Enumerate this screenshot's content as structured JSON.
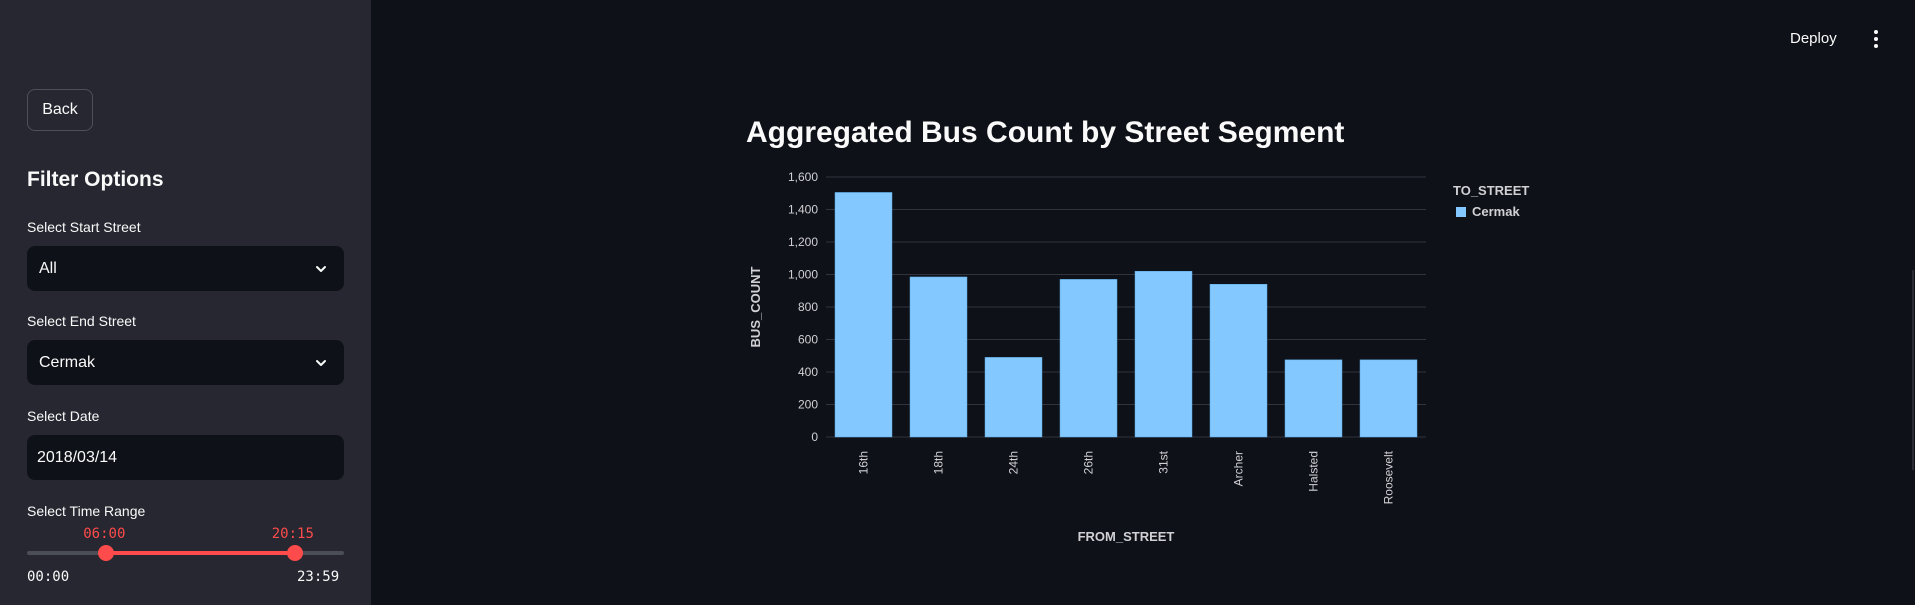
{
  "sidebar": {
    "back_label": "Back",
    "filter_title": "Filter Options",
    "start_street": {
      "label": "Select Start Street",
      "value": "All"
    },
    "end_street": {
      "label": "Select End Street",
      "value": "Cermak"
    },
    "date": {
      "label": "Select Date",
      "value": "2018/03/14"
    },
    "time_range": {
      "label": "Select Time Range",
      "low_value": "06:00",
      "high_value": "20:15",
      "min": "00:00",
      "max": "23:59",
      "low_fraction": 0.25,
      "high_fraction": 0.8446
    }
  },
  "header": {
    "deploy_label": "Deploy",
    "menu_icon": "vertical-ellipsis-icon"
  },
  "chart_title": "Aggregated Bus Count by Street Segment",
  "colors": {
    "accent": "#ff4b4b",
    "bar": "#83c9ff",
    "background": "#0e1117",
    "sidebar": "#262730"
  },
  "chart_data": {
    "type": "bar",
    "title": "Aggregated Bus Count by Street Segment",
    "xlabel": "FROM_STREET",
    "ylabel": "BUS_COUNT",
    "categories": [
      "16th",
      "18th",
      "24th",
      "26th",
      "31st",
      "Archer",
      "Halsted",
      "Roosevelt"
    ],
    "series": [
      {
        "name": "Cermak",
        "values": [
          1505,
          985,
          490,
          970,
          1020,
          940,
          475,
          475
        ]
      }
    ],
    "ylim": [
      0,
      1600
    ],
    "yticks": [
      0,
      200,
      400,
      600,
      800,
      1000,
      1200,
      1400,
      1600
    ],
    "ytick_labels": [
      "0",
      "200",
      "400",
      "600",
      "800",
      "1,000",
      "1,200",
      "1,400",
      "1,600"
    ],
    "legend_title": "TO_STREET",
    "legend_position": "top-right",
    "grid": true
  }
}
